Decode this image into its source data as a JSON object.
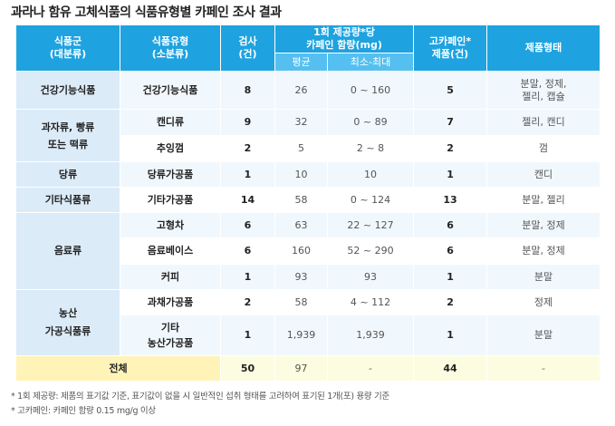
{
  "title": "과라나 함유 고체식품의 식품유형별 카페인 조사 결과",
  "header": {
    "col_group": "식품군\n(대분류)",
    "col_type": "식품유형\n(소분류)",
    "col_count": "검사\n(건)",
    "col_caffeine": "1회 제공량*당\n카페인 함량(mg)",
    "col_avg": "평균",
    "col_range": "최소-최대",
    "col_high": "고카페인*\n제품(건)",
    "col_form": "제품형태"
  },
  "rows": [
    {
      "group": "건강기능식품",
      "type": "건강기능식품",
      "count": "8",
      "avg": "26",
      "range": "0 ~ 160",
      "high": "5",
      "form": "분말, 정제,\n젤리, 캡슐"
    },
    {
      "group": "과자류, 빵류\n또는 떡류",
      "type": "캔디류",
      "count": "9",
      "avg": "32",
      "range": "0 ~ 89",
      "high": "7",
      "form": "젤리, 캔디"
    },
    {
      "type": "추잉껌",
      "count": "2",
      "avg": "5",
      "range": "2 ~ 8",
      "high": "2",
      "form": "껌"
    },
    {
      "group": "당류",
      "type": "당류가공품",
      "count": "1",
      "avg": "10",
      "range": "10",
      "high": "1",
      "form": "캔디"
    },
    {
      "group": "기타식품류",
      "type": "기타가공품",
      "count": "14",
      "avg": "58",
      "range": "0 ~ 124",
      "high": "13",
      "form": "분말, 젤리"
    },
    {
      "group": "음료류",
      "type": "고형차",
      "count": "6",
      "avg": "63",
      "range": "22 ~ 127",
      "high": "6",
      "form": "분말, 정제"
    },
    {
      "type": "음료베이스",
      "count": "6",
      "avg": "160",
      "range": "52 ~ 290",
      "high": "6",
      "form": "분말, 정제"
    },
    {
      "type": "커피",
      "count": "1",
      "avg": "93",
      "range": "93",
      "high": "1",
      "form": "분말"
    },
    {
      "group": "농산\n가공식품류",
      "type": "과채가공품",
      "count": "2",
      "avg": "58",
      "range": "4 ~ 112",
      "high": "2",
      "form": "정제"
    },
    {
      "type": "기타\n농산가공품",
      "count": "1",
      "avg": "1,939",
      "range": "1,939",
      "high": "1",
      "form": "분말"
    }
  ],
  "total": {
    "label": "전체",
    "count": "50",
    "avg": "97",
    "range": "-",
    "high": "44",
    "form": "-"
  },
  "notes": [
    "* 1회 제공량: 제품의 표기값 기준, 표기값이 없을 시 일반적인 섭취 형태를 고려하여 표기된 1개(포) 용량 기준",
    "* 고카페인: 카페인 함량 0.15 mg/g 이상"
  ]
}
